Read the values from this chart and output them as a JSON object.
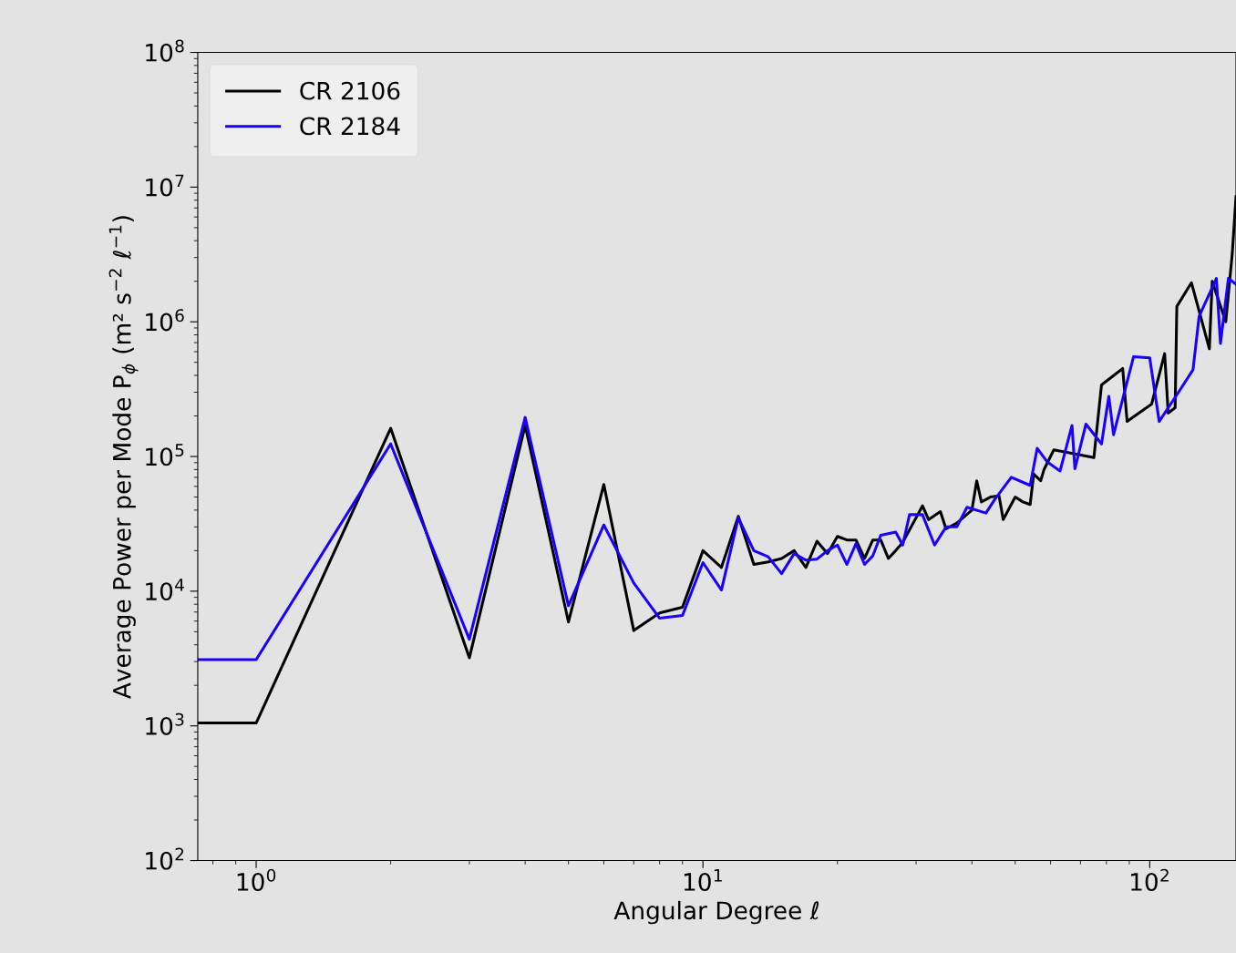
{
  "chart_data": {
    "type": "line",
    "xlabel": "Angular Degree ℓ",
    "ylabel": "Average Power per Mode P$_{ϕ}$ (m² s$^{−2}$ ℓ$^{−1}$)",
    "log": "xy",
    "xlim": [
      0.74,
      156
    ],
    "ylim": [
      100,
      100000000
    ],
    "xticks": [
      {
        "value": 1,
        "label": "10$^{0}$"
      },
      {
        "value": 10,
        "label": "10$^{1}$"
      },
      {
        "value": 100,
        "label": "10$^{2}$"
      }
    ],
    "yticks": [
      {
        "value": 100,
        "label": "10$^{2}$"
      },
      {
        "value": 1000,
        "label": "10$^{3}$"
      },
      {
        "value": 10000,
        "label": "10$^{4}$"
      },
      {
        "value": 100000,
        "label": "10$^{5}$"
      },
      {
        "value": 1000000,
        "label": "10$^{6}$"
      },
      {
        "value": 10000000,
        "label": "10$^{7}$"
      },
      {
        "value": 100000000,
        "label": "10$^{8}$"
      }
    ],
    "grid": false,
    "legend": "top left",
    "series": [
      {
        "name": "CR 2106",
        "color": "#000000",
        "x": [
          0.74,
          1,
          2,
          3,
          4,
          5,
          6,
          7,
          8,
          9,
          10,
          11,
          12,
          13,
          14,
          15,
          16,
          17,
          18,
          19,
          20,
          21,
          22,
          23,
          24,
          25,
          26,
          27,
          28,
          31,
          32,
          34,
          35,
          37,
          40,
          41,
          42,
          44,
          46,
          47,
          50,
          52,
          54,
          55,
          57,
          58,
          61,
          75,
          78,
          87,
          89,
          101,
          108,
          110,
          114,
          115,
          124,
          136,
          138,
          148,
          153,
          156
        ],
        "values": [
          1050,
          1050,
          162000,
          3200,
          170000,
          5900,
          62000,
          5100,
          6900,
          7600,
          20000,
          15000,
          36000,
          15800,
          16500,
          17500,
          20000,
          15000,
          23500,
          19000,
          25500,
          24000,
          24000,
          17500,
          24000,
          24000,
          17500,
          20000,
          23000,
          43000,
          34000,
          39000,
          29000,
          32000,
          40000,
          66000,
          46000,
          50000,
          51000,
          34000,
          50000,
          46000,
          44000,
          74000,
          66000,
          80000,
          112000,
          98000,
          340000,
          450000,
          182000,
          245000,
          580000,
          210000,
          230000,
          1300000,
          1950000,
          630000,
          2000000,
          1000000,
          3200000,
          8500000
        ]
      },
      {
        "name": "CR 2184",
        "color": "#1a00ff",
        "x": [
          0.74,
          1,
          2,
          3,
          4,
          5,
          6,
          7,
          8,
          9,
          10,
          11,
          12,
          13,
          14,
          15,
          16,
          17,
          18,
          19,
          20,
          21,
          22,
          23,
          24,
          25,
          27,
          28,
          29,
          31,
          33,
          35,
          37,
          39,
          43,
          45,
          49,
          54,
          56,
          59,
          63,
          67,
          68,
          72,
          78,
          81,
          83,
          92,
          100,
          105,
          116,
          125,
          129,
          141,
          144,
          150,
          156
        ],
        "values": [
          3100,
          3100,
          124000,
          4400,
          195000,
          7800,
          31000,
          11500,
          6300,
          6600,
          16300,
          10200,
          35000,
          20000,
          18000,
          13500,
          19000,
          17000,
          17300,
          20000,
          22000,
          15800,
          22500,
          15800,
          18300,
          26000,
          27500,
          22000,
          37000,
          37000,
          22000,
          30000,
          30000,
          42000,
          38000,
          48000,
          70000,
          61000,
          115000,
          91000,
          78000,
          170000,
          81000,
          174000,
          124000,
          280000,
          145000,
          550000,
          540000,
          182000,
          300000,
          440000,
          1100000,
          2100000,
          690000,
          2100000,
          1900000
        ]
      }
    ]
  }
}
